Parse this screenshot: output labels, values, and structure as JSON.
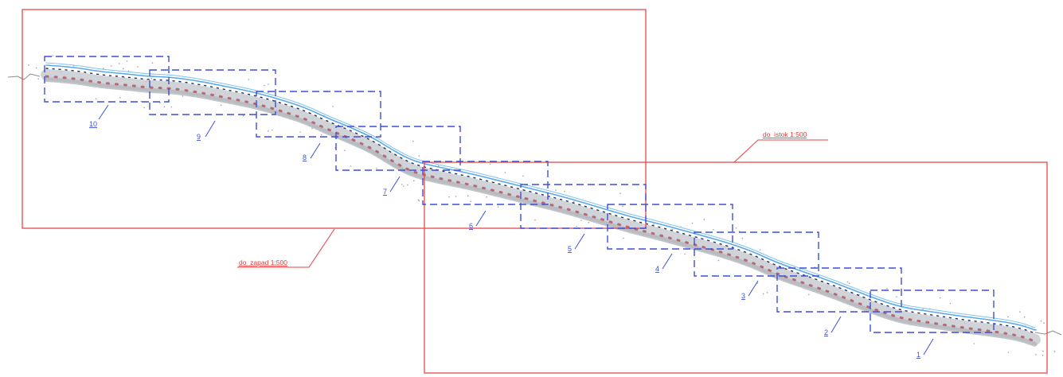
{
  "frames": [
    {
      "id": "zapad",
      "label": "do_zapad 1:500"
    },
    {
      "id": "istok",
      "label": "do_istok 1:500"
    }
  ],
  "sheets": [
    {
      "number": "10"
    },
    {
      "number": "9"
    },
    {
      "number": "8"
    },
    {
      "number": "7"
    },
    {
      "number": "6"
    },
    {
      "number": "5"
    },
    {
      "number": "4"
    },
    {
      "number": "3"
    },
    {
      "number": "2"
    },
    {
      "number": "1"
    }
  ],
  "colors": {
    "frame": "#e8474a",
    "sheet_outline": "#3e4fd8",
    "river": "#5aa8e8",
    "survey_detail": "#b0505e"
  }
}
